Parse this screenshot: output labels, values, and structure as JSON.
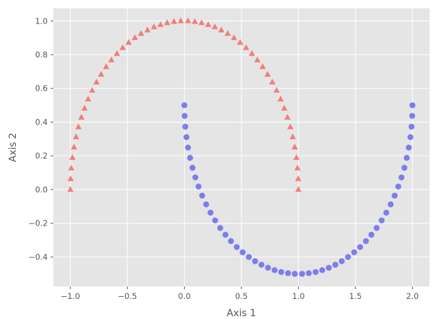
{
  "colors": {
    "background": "#e5e5e5",
    "grid": "#ffffff",
    "text": "#555555",
    "series_triangle": "#f36b6b",
    "series_circle": "#6b6bf0"
  },
  "chart_data": {
    "type": "scatter",
    "title": "",
    "xlabel": "Axis 1",
    "ylabel": "Axis 2",
    "xlim": [
      -1.15,
      2.15
    ],
    "ylim": [
      -0.575,
      1.075
    ],
    "grid": true,
    "legend": "none",
    "xticks": [
      -1.0,
      -0.5,
      0.0,
      0.5,
      1.0,
      1.5,
      2.0
    ],
    "xtick_labels": [
      "−1.0",
      "−0.5",
      "0.0",
      "0.5",
      "1.0",
      "1.5",
      "2.0"
    ],
    "yticks": [
      -0.4,
      -0.2,
      0.0,
      0.2,
      0.4,
      0.6,
      0.8,
      1.0
    ],
    "ytick_labels": [
      "−0.4",
      "−0.2",
      "0.0",
      "0.2",
      "0.4",
      "0.6",
      "0.8",
      "1.0"
    ],
    "series": [
      {
        "marker": "triangle",
        "color": "#f36b6b",
        "x": [
          1.0,
          0.998,
          0.992,
          0.982,
          0.968,
          0.95,
          0.929,
          0.904,
          0.876,
          0.844,
          0.809,
          0.771,
          0.73,
          0.686,
          0.64,
          0.592,
          0.541,
          0.489,
          0.435,
          0.38,
          0.324,
          0.267,
          0.209,
          0.151,
          0.091,
          0.032,
          -0.032,
          -0.091,
          -0.151,
          -0.209,
          -0.267,
          -0.324,
          -0.38,
          -0.435,
          -0.489,
          -0.541,
          -0.592,
          -0.64,
          -0.686,
          -0.73,
          -0.771,
          -0.809,
          -0.844,
          -0.876,
          -0.904,
          -0.929,
          -0.95,
          -0.968,
          -0.982,
          -0.992,
          -0.998,
          -1.0
        ],
        "y": [
          0.0,
          0.063,
          0.127,
          0.189,
          0.251,
          0.312,
          0.371,
          0.428,
          0.482,
          0.536,
          0.588,
          0.637,
          0.683,
          0.728,
          0.768,
          0.806,
          0.841,
          0.872,
          0.9,
          0.925,
          0.946,
          0.964,
          0.978,
          0.989,
          0.996,
          1.0,
          1.0,
          0.996,
          0.989,
          0.978,
          0.964,
          0.946,
          0.925,
          0.9,
          0.872,
          0.841,
          0.806,
          0.768,
          0.728,
          0.683,
          0.637,
          0.588,
          0.536,
          0.482,
          0.428,
          0.371,
          0.312,
          0.251,
          0.189,
          0.127,
          0.063,
          0.0
        ]
      },
      {
        "marker": "circle",
        "color": "#6b6bf0",
        "x": [
          0.0,
          0.002,
          0.008,
          0.018,
          0.032,
          0.05,
          0.071,
          0.096,
          0.124,
          0.156,
          0.191,
          0.229,
          0.27,
          0.314,
          0.36,
          0.408,
          0.459,
          0.511,
          0.565,
          0.62,
          0.676,
          0.733,
          0.791,
          0.849,
          0.909,
          0.968,
          1.032,
          1.091,
          1.151,
          1.209,
          1.267,
          1.324,
          1.38,
          1.435,
          1.489,
          1.541,
          1.592,
          1.64,
          1.686,
          1.73,
          1.771,
          1.809,
          1.844,
          1.876,
          1.904,
          1.929,
          1.95,
          1.968,
          1.982,
          1.992,
          1.998,
          2.0
        ],
        "y": [
          0.5,
          0.437,
          0.373,
          0.311,
          0.249,
          0.188,
          0.129,
          0.072,
          0.018,
          -0.036,
          -0.088,
          -0.137,
          -0.183,
          -0.228,
          -0.268,
          -0.306,
          -0.341,
          -0.372,
          -0.4,
          -0.425,
          -0.446,
          -0.464,
          -0.478,
          -0.489,
          -0.496,
          -0.5,
          -0.5,
          -0.496,
          -0.489,
          -0.478,
          -0.464,
          -0.446,
          -0.425,
          -0.4,
          -0.372,
          -0.341,
          -0.306,
          -0.268,
          -0.228,
          -0.183,
          -0.137,
          -0.088,
          -0.036,
          0.018,
          0.072,
          0.129,
          0.188,
          0.249,
          0.311,
          0.373,
          0.437,
          0.5
        ]
      }
    ]
  }
}
